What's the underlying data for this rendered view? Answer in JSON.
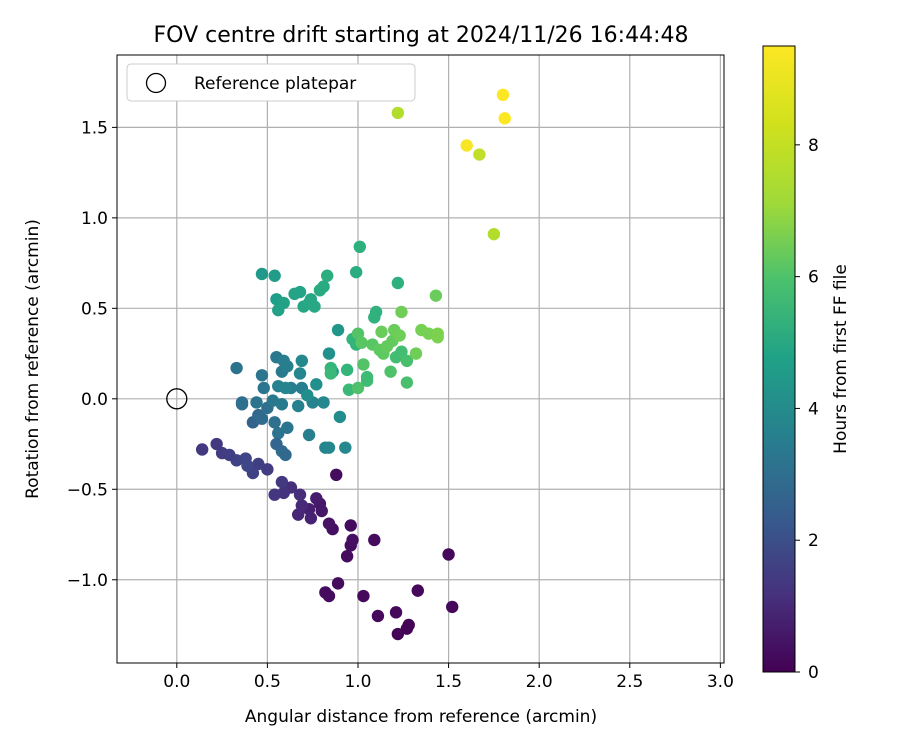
{
  "chart_data": {
    "type": "scatter",
    "title": "FOV centre drift starting at 2024/11/26 16:44:48",
    "xlabel": "Angular distance from reference (arcmin)",
    "ylabel": "Rotation from reference (arcmin)",
    "xlim": [
      -0.33,
      3.02
    ],
    "ylim": [
      -1.46,
      1.9
    ],
    "xticks": [
      0.0,
      0.5,
      1.0,
      1.5,
      2.0,
      2.5,
      3.0
    ],
    "xtick_labels": [
      "0.0",
      "0.5",
      "1.0",
      "1.5",
      "2.0",
      "2.5",
      "3.0"
    ],
    "yticks": [
      -1.0,
      -0.5,
      0.0,
      0.5,
      1.0,
      1.5
    ],
    "ytick_labels": [
      "−1.0",
      "−0.5",
      "0.0",
      "0.5",
      "1.0",
      "1.5"
    ],
    "grid": true,
    "legend": {
      "position": "upper-left",
      "entries": [
        "Reference platepar"
      ]
    },
    "reference_point": {
      "x": 0.0,
      "y": 0.0,
      "label": "Reference platepar"
    },
    "colorbar": {
      "label": "Hours from first FF file",
      "colormap": "viridis",
      "min": 0,
      "max": 9.5,
      "ticks": [
        0,
        2,
        4,
        6,
        8
      ],
      "tick_labels": [
        "0",
        "2",
        "4",
        "6",
        "8"
      ]
    },
    "points": [
      {
        "x": 1.22,
        "y": -1.3,
        "h": 0.1
      },
      {
        "x": 1.27,
        "y": -1.27,
        "h": 0.1
      },
      {
        "x": 1.28,
        "y": -1.25,
        "h": 0.1
      },
      {
        "x": 1.21,
        "y": -1.18,
        "h": 0.2
      },
      {
        "x": 1.11,
        "y": -1.2,
        "h": 0.2
      },
      {
        "x": 1.03,
        "y": -1.09,
        "h": 0.2
      },
      {
        "x": 0.84,
        "y": -1.09,
        "h": 0.3
      },
      {
        "x": 0.82,
        "y": -1.07,
        "h": 0.3
      },
      {
        "x": 0.89,
        "y": -1.02,
        "h": 0.3
      },
      {
        "x": 1.52,
        "y": -1.15,
        "h": 0.2
      },
      {
        "x": 1.33,
        "y": -1.06,
        "h": 0.2
      },
      {
        "x": 1.5,
        "y": -0.86,
        "h": 0.2
      },
      {
        "x": 1.09,
        "y": -0.78,
        "h": 0.3
      },
      {
        "x": 0.94,
        "y": -0.87,
        "h": 0.3
      },
      {
        "x": 0.96,
        "y": -0.81,
        "h": 0.3
      },
      {
        "x": 0.97,
        "y": -0.78,
        "h": 0.4
      },
      {
        "x": 0.96,
        "y": -0.7,
        "h": 0.3
      },
      {
        "x": 0.86,
        "y": -0.72,
        "h": 0.4
      },
      {
        "x": 0.84,
        "y": -0.69,
        "h": 0.5
      },
      {
        "x": 0.8,
        "y": -0.62,
        "h": 0.6
      },
      {
        "x": 0.79,
        "y": -0.58,
        "h": 0.6
      },
      {
        "x": 0.77,
        "y": -0.55,
        "h": 0.7
      },
      {
        "x": 0.73,
        "y": -0.61,
        "h": 0.8
      },
      {
        "x": 0.74,
        "y": -0.66,
        "h": 0.9
      },
      {
        "x": 0.67,
        "y": -0.64,
        "h": 1.0
      },
      {
        "x": 0.69,
        "y": -0.59,
        "h": 1.1
      },
      {
        "x": 0.68,
        "y": -0.53,
        "h": 1.2
      },
      {
        "x": 0.63,
        "y": -0.49,
        "h": 1.3
      },
      {
        "x": 0.59,
        "y": -0.52,
        "h": 1.4
      },
      {
        "x": 0.54,
        "y": -0.53,
        "h": 1.5
      },
      {
        "x": 0.58,
        "y": -0.46,
        "h": 1.6
      },
      {
        "x": 0.88,
        "y": -0.42,
        "h": 0.3
      },
      {
        "x": 0.5,
        "y": -0.39,
        "h": 1.7
      },
      {
        "x": 0.45,
        "y": -0.36,
        "h": 1.8
      },
      {
        "x": 0.42,
        "y": -0.41,
        "h": 1.9
      },
      {
        "x": 0.39,
        "y": -0.37,
        "h": 2.0
      },
      {
        "x": 0.38,
        "y": -0.33,
        "h": 2.0
      },
      {
        "x": 0.33,
        "y": -0.34,
        "h": 1.9
      },
      {
        "x": 0.29,
        "y": -0.31,
        "h": 1.8
      },
      {
        "x": 0.25,
        "y": -0.3,
        "h": 1.7
      },
      {
        "x": 0.22,
        "y": -0.25,
        "h": 1.6
      },
      {
        "x": 0.14,
        "y": -0.28,
        "h": 1.6
      },
      {
        "x": 0.42,
        "y": -0.13,
        "h": 3.0
      },
      {
        "x": 0.45,
        "y": -0.09,
        "h": 3.2
      },
      {
        "x": 0.47,
        "y": -0.11,
        "h": 3.3
      },
      {
        "x": 0.5,
        "y": -0.05,
        "h": 3.4
      },
      {
        "x": 0.54,
        "y": -0.13,
        "h": 3.5
      },
      {
        "x": 0.56,
        "y": -0.19,
        "h": 3.6
      },
      {
        "x": 0.61,
        "y": -0.16,
        "h": 3.7
      },
      {
        "x": 0.58,
        "y": -0.29,
        "h": 3.3
      },
      {
        "x": 0.6,
        "y": -0.31,
        "h": 3.2
      },
      {
        "x": 0.55,
        "y": -0.25,
        "h": 3.1
      },
      {
        "x": 0.36,
        "y": -0.02,
        "h": 3.4
      },
      {
        "x": 0.36,
        "y": -0.03,
        "h": 3.5
      },
      {
        "x": 0.44,
        "y": -0.02,
        "h": 3.6
      },
      {
        "x": 0.48,
        "y": 0.06,
        "h": 3.7
      },
      {
        "x": 0.53,
        "y": -0.01,
        "h": 3.8
      },
      {
        "x": 0.58,
        "y": -0.03,
        "h": 3.9
      },
      {
        "x": 0.63,
        "y": 0.06,
        "h": 4.0
      },
      {
        "x": 0.69,
        "y": 0.06,
        "h": 4.1
      },
      {
        "x": 0.67,
        "y": -0.04,
        "h": 4.2
      },
      {
        "x": 0.75,
        "y": -0.02,
        "h": 4.3
      },
      {
        "x": 0.81,
        "y": -0.02,
        "h": 4.4
      },
      {
        "x": 0.73,
        "y": -0.2,
        "h": 4.1
      },
      {
        "x": 0.82,
        "y": -0.27,
        "h": 4.3
      },
      {
        "x": 0.84,
        "y": -0.27,
        "h": 4.4
      },
      {
        "x": 0.93,
        "y": -0.27,
        "h": 4.5
      },
      {
        "x": 0.9,
        "y": -0.1,
        "h": 4.6
      },
      {
        "x": 0.33,
        "y": 0.17,
        "h": 3.6
      },
      {
        "x": 0.47,
        "y": 0.13,
        "h": 3.7
      },
      {
        "x": 0.55,
        "y": 0.23,
        "h": 3.8
      },
      {
        "x": 0.58,
        "y": 0.15,
        "h": 3.9
      },
      {
        "x": 0.59,
        "y": 0.21,
        "h": 4.0
      },
      {
        "x": 0.61,
        "y": 0.18,
        "h": 4.1
      },
      {
        "x": 0.56,
        "y": 0.07,
        "h": 4.2
      },
      {
        "x": 0.6,
        "y": 0.06,
        "h": 4.3
      },
      {
        "x": 0.68,
        "y": 0.14,
        "h": 4.4
      },
      {
        "x": 0.69,
        "y": 0.21,
        "h": 4.5
      },
      {
        "x": 0.72,
        "y": 0.02,
        "h": 4.6
      },
      {
        "x": 0.77,
        "y": 0.08,
        "h": 4.7
      },
      {
        "x": 0.84,
        "y": 0.25,
        "h": 4.8
      },
      {
        "x": 0.86,
        "y": 0.15,
        "h": 4.9
      },
      {
        "x": 0.89,
        "y": 0.38,
        "h": 5.0
      },
      {
        "x": 0.47,
        "y": 0.69,
        "h": 5.1
      },
      {
        "x": 0.54,
        "y": 0.68,
        "h": 5.2
      },
      {
        "x": 0.55,
        "y": 0.55,
        "h": 5.3
      },
      {
        "x": 0.56,
        "y": 0.49,
        "h": 5.4
      },
      {
        "x": 0.59,
        "y": 0.53,
        "h": 5.4
      },
      {
        "x": 0.65,
        "y": 0.58,
        "h": 5.5
      },
      {
        "x": 0.68,
        "y": 0.59,
        "h": 5.5
      },
      {
        "x": 0.7,
        "y": 0.51,
        "h": 5.6
      },
      {
        "x": 0.74,
        "y": 0.55,
        "h": 5.6
      },
      {
        "x": 0.76,
        "y": 0.51,
        "h": 5.7
      },
      {
        "x": 0.73,
        "y": 0.53,
        "h": 5.7
      },
      {
        "x": 0.79,
        "y": 0.6,
        "h": 5.8
      },
      {
        "x": 0.81,
        "y": 0.62,
        "h": 5.8
      },
      {
        "x": 0.83,
        "y": 0.68,
        "h": 5.9
      },
      {
        "x": 0.99,
        "y": 0.7,
        "h": 5.9
      },
      {
        "x": 1.01,
        "y": 0.84,
        "h": 6.0
      },
      {
        "x": 1.22,
        "y": 0.64,
        "h": 6.0
      },
      {
        "x": 1.09,
        "y": 0.45,
        "h": 6.1
      },
      {
        "x": 1.1,
        "y": 0.48,
        "h": 6.1
      },
      {
        "x": 0.97,
        "y": 0.33,
        "h": 6.2
      },
      {
        "x": 0.99,
        "y": 0.3,
        "h": 6.2
      },
      {
        "x": 0.85,
        "y": 0.17,
        "h": 6.3
      },
      {
        "x": 0.94,
        "y": 0.16,
        "h": 6.3
      },
      {
        "x": 0.85,
        "y": 0.14,
        "h": 6.4
      },
      {
        "x": 0.95,
        "y": 0.05,
        "h": 6.4
      },
      {
        "x": 1.05,
        "y": 0.1,
        "h": 6.5
      },
      {
        "x": 1.05,
        "y": 0.12,
        "h": 6.5
      },
      {
        "x": 1.21,
        "y": 0.23,
        "h": 6.6
      },
      {
        "x": 1.24,
        "y": 0.26,
        "h": 6.6
      },
      {
        "x": 1.27,
        "y": 0.21,
        "h": 6.7
      },
      {
        "x": 1.27,
        "y": 0.09,
        "h": 6.7
      },
      {
        "x": 1.18,
        "y": 0.15,
        "h": 6.8
      },
      {
        "x": 1.0,
        "y": 0.06,
        "h": 6.8
      },
      {
        "x": 1.03,
        "y": 0.19,
        "h": 6.9
      },
      {
        "x": 1.0,
        "y": 0.36,
        "h": 6.9
      },
      {
        "x": 1.02,
        "y": 0.31,
        "h": 7.0
      },
      {
        "x": 1.08,
        "y": 0.3,
        "h": 7.0
      },
      {
        "x": 1.12,
        "y": 0.27,
        "h": 7.1
      },
      {
        "x": 1.14,
        "y": 0.25,
        "h": 7.1
      },
      {
        "x": 1.16,
        "y": 0.29,
        "h": 7.2
      },
      {
        "x": 1.19,
        "y": 0.32,
        "h": 7.2
      },
      {
        "x": 1.13,
        "y": 0.37,
        "h": 7.3
      },
      {
        "x": 1.2,
        "y": 0.38,
        "h": 7.3
      },
      {
        "x": 1.23,
        "y": 0.35,
        "h": 7.4
      },
      {
        "x": 1.32,
        "y": 0.25,
        "h": 7.4
      },
      {
        "x": 1.35,
        "y": 0.38,
        "h": 7.5
      },
      {
        "x": 1.39,
        "y": 0.36,
        "h": 7.5
      },
      {
        "x": 1.44,
        "y": 0.34,
        "h": 7.6
      },
      {
        "x": 1.44,
        "y": 0.36,
        "h": 7.6
      },
      {
        "x": 1.43,
        "y": 0.57,
        "h": 7.3
      },
      {
        "x": 1.24,
        "y": 0.48,
        "h": 7.4
      },
      {
        "x": 1.22,
        "y": 1.58,
        "h": 8.4
      },
      {
        "x": 1.75,
        "y": 0.91,
        "h": 8.4
      },
      {
        "x": 1.67,
        "y": 1.35,
        "h": 8.6
      },
      {
        "x": 1.6,
        "y": 1.4,
        "h": 9.4
      },
      {
        "x": 1.8,
        "y": 1.68,
        "h": 9.5
      },
      {
        "x": 1.81,
        "y": 1.55,
        "h": 9.5
      }
    ]
  }
}
